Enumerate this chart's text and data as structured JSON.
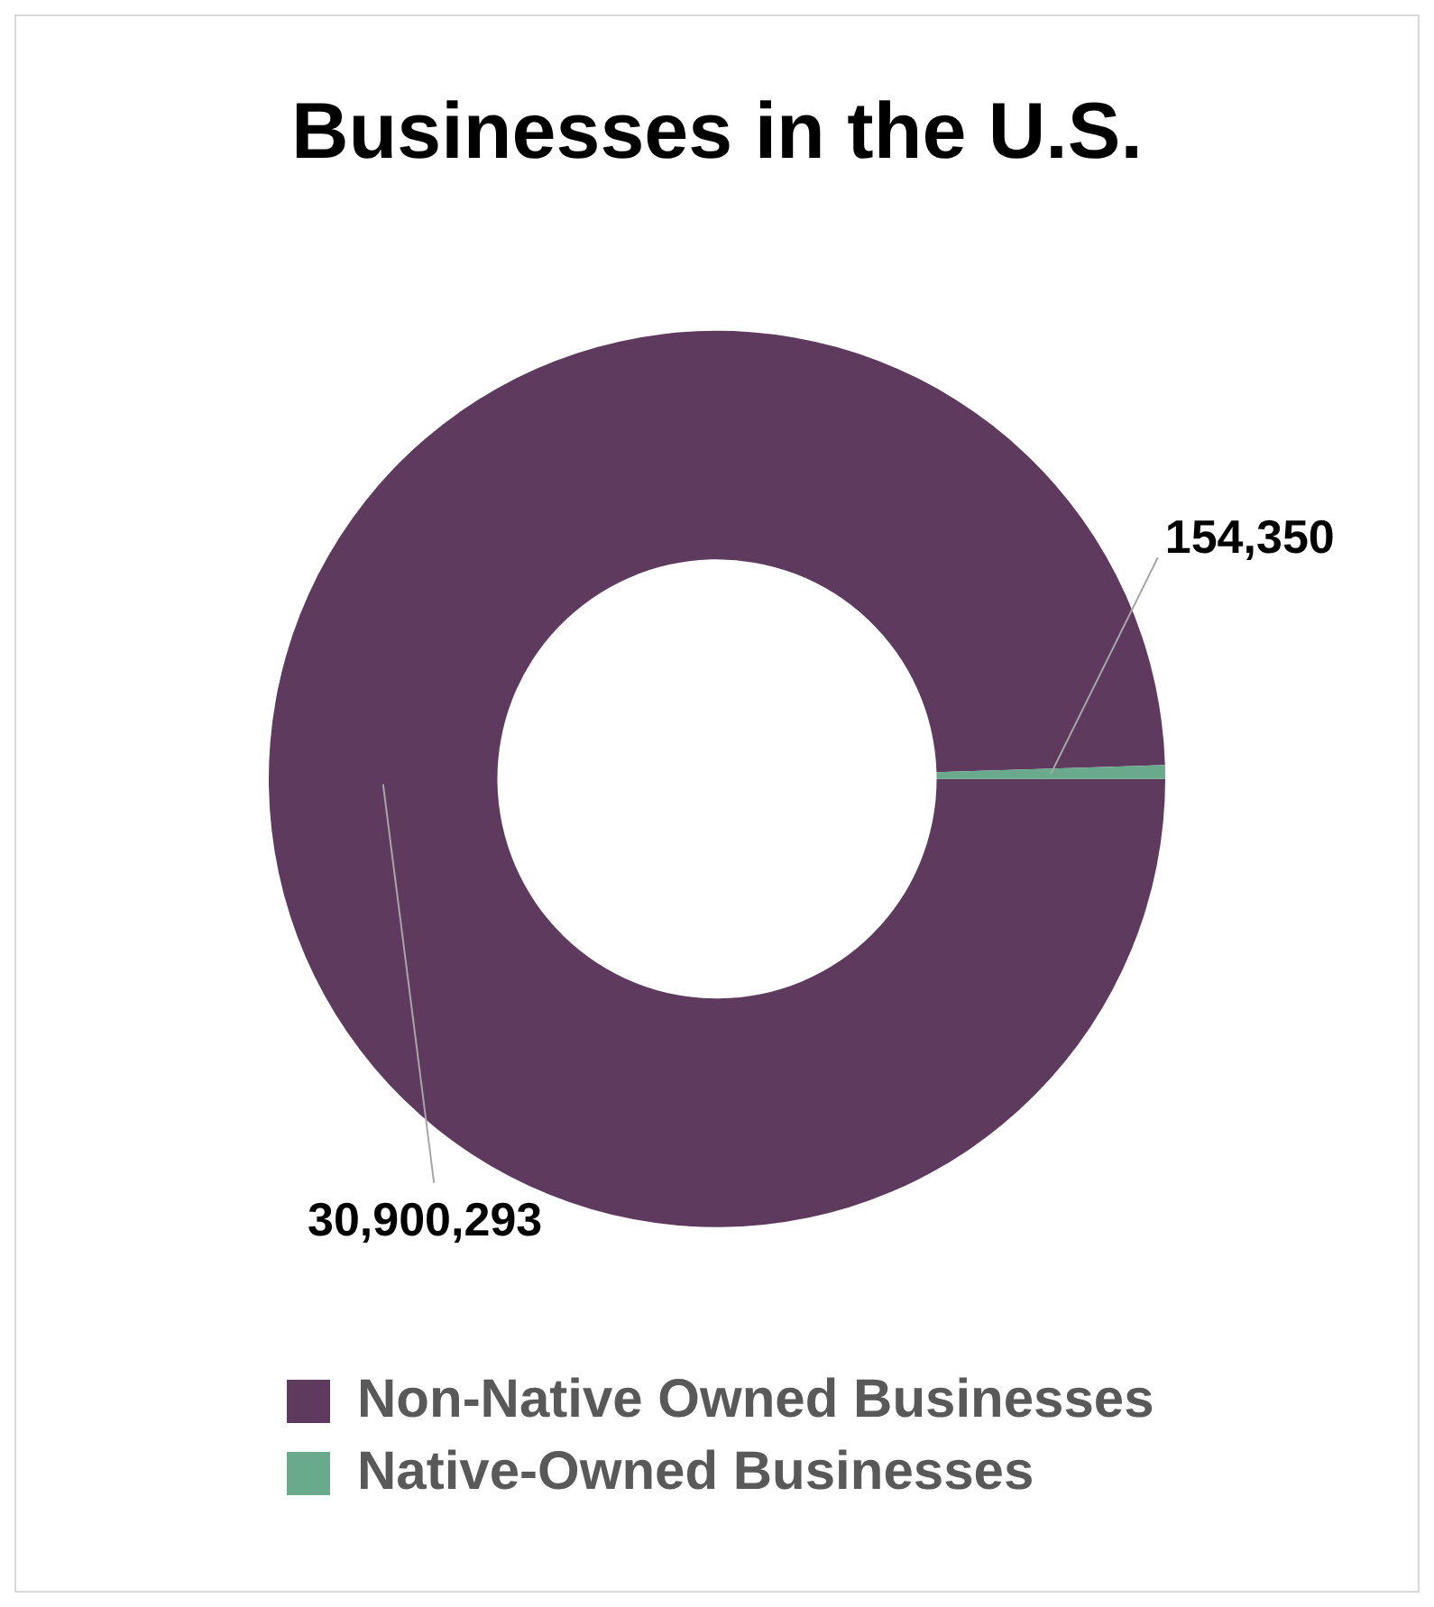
{
  "chart_data": {
    "type": "donut",
    "title": "Businesses in the U.S.",
    "categories": [
      "Non-Native Owned Businesses",
      "Native-Owned Businesses"
    ],
    "values": [
      30900293,
      154350
    ],
    "colors": [
      "#5e3a5e",
      "#6aaa8c"
    ],
    "value_labels": [
      "30,900,293",
      "154,350"
    ],
    "legend": "bottom"
  }
}
